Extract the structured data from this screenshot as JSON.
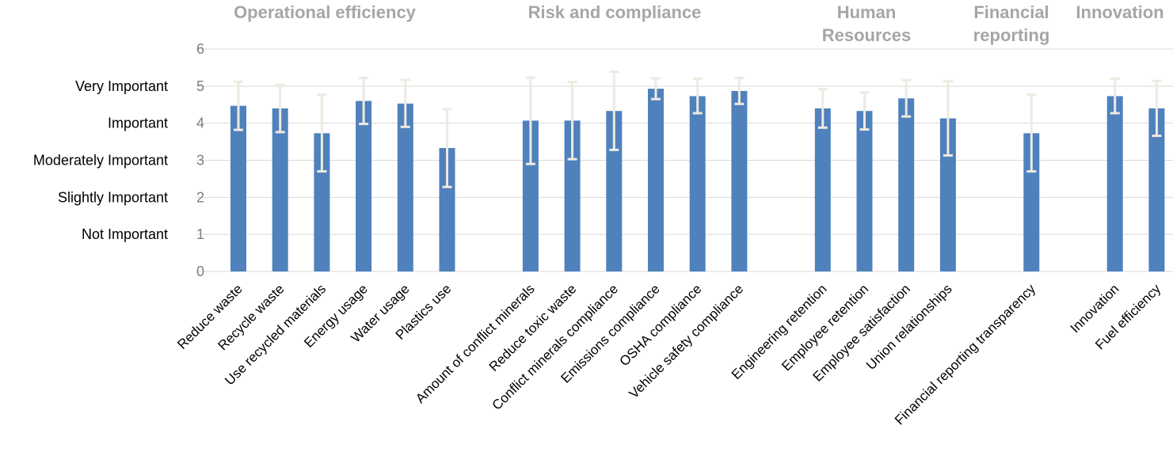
{
  "chart_data": {
    "type": "bar",
    "title": "",
    "xlabel": "",
    "ylabel": "",
    "ylim": [
      0,
      6
    ],
    "yticks": [
      0,
      1,
      2,
      3,
      4,
      5,
      6
    ],
    "y_scale_labels": [
      {
        "value": 5,
        "label": "Very Important"
      },
      {
        "value": 4,
        "label": "Important"
      },
      {
        "value": 3,
        "label": "Moderately Important"
      },
      {
        "value": 2,
        "label": "Slightly Important"
      },
      {
        "value": 1,
        "label": "Not Important"
      }
    ],
    "grid": true,
    "bar_color": "#4f81bd",
    "error_bar_color": "#eeeae0",
    "groups": [
      {
        "name": "Operational efficiency",
        "name_lines": [
          "Operational efficiency"
        ],
        "categories": [
          "Reduce waste",
          "Recycle waste",
          "Use recycled materials",
          "Energy usage",
          "Water usage",
          "Plastics use"
        ]
      },
      {
        "name": "Risk and compliance",
        "name_lines": [
          "Risk and compliance"
        ],
        "categories": [
          "Amount of conflict minerals",
          "Reduce toxic waste",
          "Conflict minerals compliance",
          "Emissions compliance",
          "OSHA compliance",
          "Vehicle safety compliance"
        ]
      },
      {
        "name": "Human Resources",
        "name_lines": [
          "Human",
          "Resources"
        ],
        "categories": [
          "Engineering retention",
          "Employee retention",
          "Employee satisfaction",
          "Union relationships"
        ]
      },
      {
        "name": "Financial reporting",
        "name_lines": [
          "Financial",
          "reporting"
        ],
        "categories": [
          "Financial reporting transparency"
        ]
      },
      {
        "name": "Innovation",
        "name_lines": [
          "Innovation"
        ],
        "categories": [
          "Innovation",
          "Fuel efficiency"
        ]
      }
    ],
    "categories": [
      "Reduce waste",
      "Recycle waste",
      "Use recycled materials",
      "Energy usage",
      "Water usage",
      "Plastics use",
      "Amount of conflict minerals",
      "Reduce toxic waste",
      "Conflict minerals compliance",
      "Emissions compliance",
      "OSHA compliance",
      "Vehicle safety compliance",
      "Engineering retention",
      "Employee retention",
      "Employee satisfaction",
      "Union relationships",
      "Financial reporting transparency",
      "Innovation",
      "Fuel efficiency"
    ],
    "values": [
      4.47,
      4.4,
      3.73,
      4.6,
      4.53,
      3.33,
      4.07,
      4.07,
      4.33,
      4.93,
      4.73,
      4.87,
      4.4,
      4.33,
      4.67,
      4.13,
      3.73,
      4.73,
      4.4
    ],
    "error_low": [
      3.82,
      3.76,
      2.7,
      3.98,
      3.9,
      2.28,
      2.9,
      3.03,
      3.28,
      4.65,
      4.27,
      4.52,
      3.88,
      3.83,
      4.18,
      3.13,
      2.7,
      4.27,
      3.66
    ],
    "error_high": [
      5.12,
      5.04,
      4.77,
      5.22,
      5.17,
      4.38,
      5.23,
      5.11,
      5.39,
      5.21,
      5.2,
      5.22,
      4.92,
      4.83,
      5.16,
      5.13,
      4.77,
      5.2,
      5.14
    ]
  }
}
